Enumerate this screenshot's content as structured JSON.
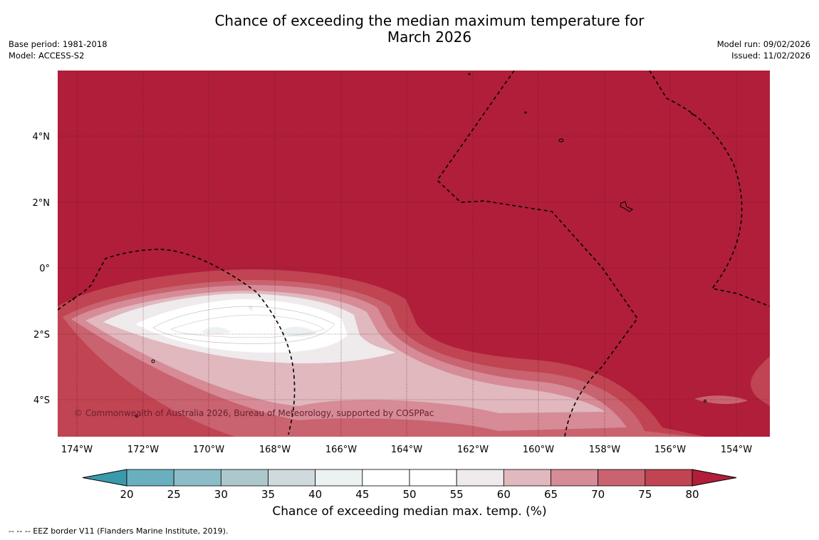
{
  "title": {
    "line1": "Chance of exceeding the median maximum temperature for",
    "line2": "March 2026"
  },
  "meta_left": {
    "base_period": "Base period: 1981-2018",
    "model": "Model: ACCESS-S2"
  },
  "meta_right": {
    "model_run": "Model run: 09/02/2026",
    "issued": "Issued: 11/02/2026"
  },
  "map": {
    "lat_labels": [
      "4°N",
      "2°N",
      "0°",
      "2°S",
      "4°S"
    ],
    "lon_labels": [
      "174°W",
      "172°W",
      "170°W",
      "168°W",
      "166°W",
      "164°W",
      "162°W",
      "160°W",
      "158°W",
      "156°W",
      "154°W"
    ],
    "copyright": "© Commonwealth of Australia 2026, Bureau of Meteorology, supported by COSPPac",
    "background_color": "#b01e3a"
  },
  "colorbar": {
    "ticks": [
      "20",
      "25",
      "30",
      "35",
      "40",
      "45",
      "50",
      "55",
      "60",
      "65",
      "70",
      "75",
      "80"
    ],
    "colors": [
      "#3a9aab",
      "#6aafbf",
      "#8cbcc7",
      "#acc8cd",
      "#d0dade",
      "#ecf1f2",
      "#ffffff",
      "#ffffff",
      "#efeaec",
      "#e0b8be",
      "#d68b97",
      "#c8636f",
      "#c04452",
      "#b01e3a"
    ],
    "label": "Chance of exceeding median max. temp. (%)"
  },
  "footnote": "--  --  -- EEZ border V11 (Flanders Marine Institute, 2019)."
}
